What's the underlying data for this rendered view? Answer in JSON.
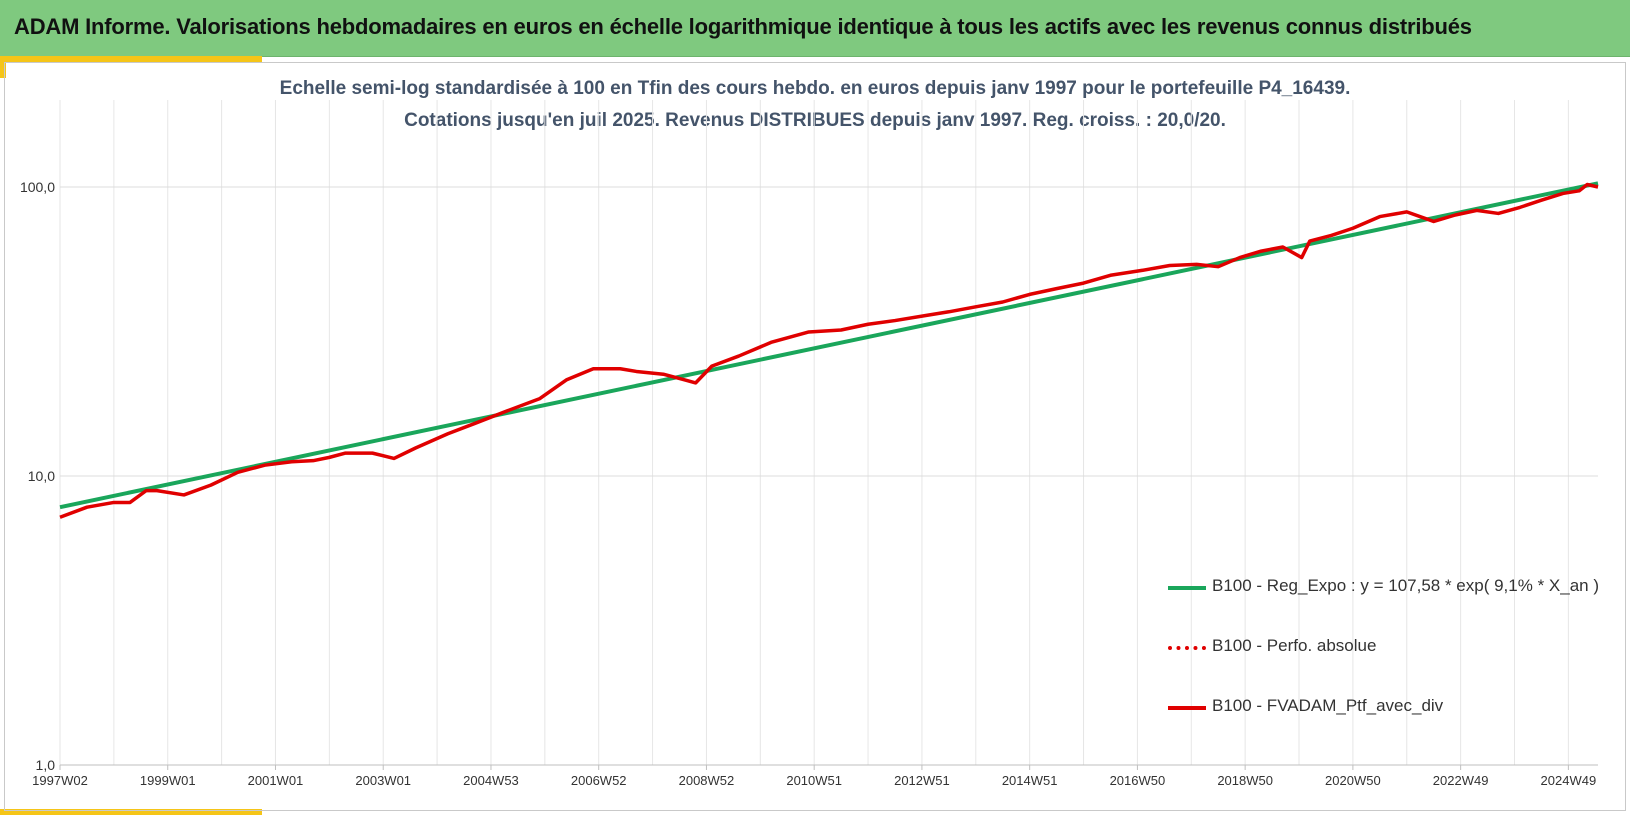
{
  "header": {
    "title": "ADAM Informe. Valorisations hebdomadaires en euros en échelle logarithmique identique à tous les actifs avec les revenus connus distribués"
  },
  "colors": {
    "banner": "#7fc97f",
    "accent": "#f5c518",
    "regression": "#1aa65b",
    "portfolio": "#e00000",
    "subtitle": "#44546a"
  },
  "chart_data": {
    "type": "line",
    "title_lines": [
      "Echelle semi-log standardisée à 100 en Tfin des cours hebdo. en euros depuis janv 1997 pour le portefeuille P4_16439.",
      "Cotations jusqu'en juil 2025. Revenus DISTRIBUES depuis janv 1997. Reg. croiss. : 20,0/20."
    ],
    "y_scale": "log",
    "ylim": [
      1,
      200
    ],
    "y_ticks": [
      "1,0",
      "10,0",
      "100,0"
    ],
    "y_tick_values": [
      1,
      10,
      100
    ],
    "x_range": [
      1997.0,
      2025.55
    ],
    "x_tick_labels": [
      "1997W02",
      "1999W01",
      "2001W01",
      "2003W01",
      "2004W53",
      "2006W52",
      "2008W52",
      "2010W51",
      "2012W51",
      "2014W51",
      "2016W50",
      "2018W50",
      "2020W50",
      "2022W49",
      "2024W49"
    ],
    "x_tick_values": [
      1997.0,
      1999.0,
      2001.0,
      2003.0,
      2005.0,
      2007.0,
      2009.0,
      2011.0,
      2013.0,
      2015.0,
      2017.0,
      2019.0,
      2021.0,
      2023.0,
      2025.0
    ],
    "grid": true,
    "legend_position": "bottom-right",
    "series": [
      {
        "name": "B100 - Reg_Expo : y = 107,58 * exp( 9,1% *  X_an )",
        "style": "solid-green",
        "x": [
          1997.0,
          2025.55
        ],
        "y": [
          7.8,
          103
        ]
      },
      {
        "name": "B100 - Perfo. absolue",
        "style": "dotted-red",
        "x": [],
        "y": []
      },
      {
        "name": "B100 - FVADAM_Ptf_avec_div",
        "style": "solid-red",
        "x": [
          1997.0,
          1997.5,
          1998.0,
          1998.3,
          1998.6,
          1998.8,
          1999.3,
          1999.8,
          2000.3,
          2000.8,
          2001.3,
          2001.7,
          2002.0,
          2002.3,
          2002.8,
          2003.2,
          2003.6,
          2004.2,
          2004.7,
          2005.3,
          2005.9,
          2006.4,
          2006.9,
          2007.4,
          2007.7,
          2008.2,
          2008.6,
          2008.8,
          2009.1,
          2009.6,
          2010.2,
          2010.9,
          2011.5,
          2012.0,
          2012.5,
          2013.1,
          2013.5,
          2014.0,
          2014.5,
          2015.0,
          2015.5,
          2016.0,
          2016.5,
          2017.1,
          2017.6,
          2018.1,
          2018.5,
          2018.9,
          2019.3,
          2019.7,
          2020.05,
          2020.2,
          2020.6,
          2021.0,
          2021.5,
          2022.0,
          2022.5,
          2022.9,
          2023.3,
          2023.7,
          2024.1,
          2024.5,
          2024.9,
          2025.2,
          2025.35,
          2025.55
        ],
        "y": [
          7.2,
          7.8,
          8.1,
          8.1,
          8.9,
          8.9,
          8.6,
          9.3,
          10.3,
          10.9,
          11.2,
          11.3,
          11.6,
          12.0,
          12.0,
          11.5,
          12.5,
          14.0,
          15.2,
          16.8,
          18.5,
          21.5,
          23.5,
          23.5,
          23.0,
          22.5,
          21.5,
          21.0,
          24.0,
          26.0,
          29.0,
          31.5,
          32.0,
          33.5,
          34.5,
          36.0,
          37.0,
          38.5,
          40.0,
          42.5,
          44.5,
          46.5,
          49.5,
          51.5,
          53.5,
          54.0,
          53.0,
          57.0,
          60.0,
          62.0,
          57.0,
          65.0,
          68.0,
          72.0,
          79.0,
          82.0,
          76.0,
          80.0,
          83.0,
          81.0,
          85.0,
          90.0,
          95.0,
          97.0,
          102.0,
          100.0
        ]
      }
    ]
  }
}
